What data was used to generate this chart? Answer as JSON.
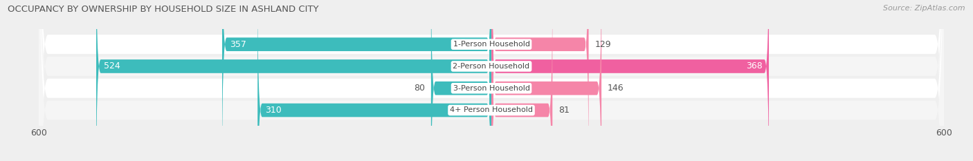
{
  "title": "OCCUPANCY BY OWNERSHIP BY HOUSEHOLD SIZE IN ASHLAND CITY",
  "source": "Source: ZipAtlas.com",
  "categories": [
    "1-Person Household",
    "2-Person Household",
    "3-Person Household",
    "4+ Person Household"
  ],
  "owner_values": [
    357,
    524,
    80,
    310
  ],
  "renter_values": [
    129,
    368,
    146,
    81
  ],
  "owner_color": "#3DBCBC",
  "renter_color": "#F585A8",
  "renter_color_strong": "#F060A0",
  "renter_strong_threshold": 300,
  "owner_color_inner_text": "#FFFFFF",
  "owner_color_outer_text": "#666666",
  "renter_color_inner_text": "#FFFFFF",
  "renter_color_outer_text": "#666666",
  "row_bg_color": "#FFFFFF",
  "row_alt_bg_color": "#F0F0F0",
  "axis_max": 600,
  "bar_height": 0.62,
  "background_color": "#EFEFEF",
  "title_fontsize": 9.5,
  "source_fontsize": 8,
  "tick_fontsize": 9,
  "bar_label_fontsize": 9,
  "cat_label_fontsize": 8,
  "inner_label_threshold": 200
}
